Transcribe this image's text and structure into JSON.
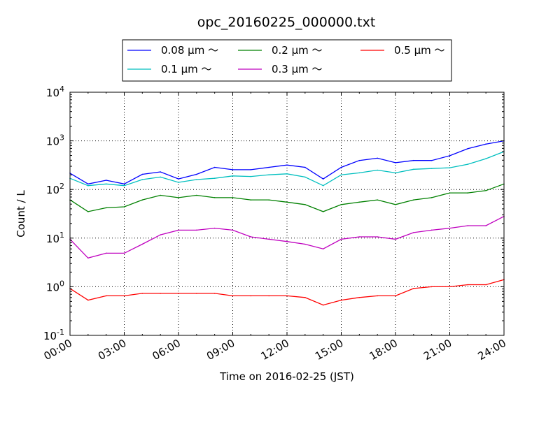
{
  "chart_data": {
    "type": "line",
    "title": "opc_20160225_000000.txt",
    "xlabel": "Time on 2016-02-25 (JST)",
    "ylabel": "Count / L",
    "yscale": "log",
    "ylim": [
      0.1,
      10000
    ],
    "xlim": [
      0,
      24
    ],
    "grid": true,
    "legend_placement": "top-center (above plot)",
    "x_tick_values": [
      0,
      3,
      6,
      9,
      12,
      15,
      18,
      21,
      24
    ],
    "x_tick_labels": [
      "00:00",
      "03:00",
      "06:00",
      "09:00",
      "12:00",
      "15:00",
      "18:00",
      "21:00",
      "24:00"
    ],
    "y_ticks": [
      {
        "value": 0.1,
        "base": "10",
        "exp": "-1"
      },
      {
        "value": 1,
        "base": "10",
        "exp": "0"
      },
      {
        "value": 10,
        "base": "10",
        "exp": "1"
      },
      {
        "value": 100,
        "base": "10",
        "exp": "2"
      },
      {
        "value": 1000,
        "base": "10",
        "exp": "3"
      },
      {
        "value": 10000,
        "base": "10",
        "exp": "4"
      }
    ],
    "x_hours": [
      0,
      1,
      2,
      3,
      4,
      5,
      6,
      7,
      8,
      9,
      10,
      11,
      12,
      13,
      14,
      15,
      16,
      17,
      18,
      19,
      20,
      21,
      22,
      23,
      24
    ],
    "series": [
      {
        "name": "0.08 μm ～",
        "color": "#0000ff",
        "values": [
          216,
          130,
          155,
          130,
          205,
          230,
          165,
          205,
          285,
          255,
          255,
          285,
          318,
          285,
          165,
          285,
          395,
          440,
          355,
          395,
          395,
          495,
          690,
          860,
          1000
        ]
      },
      {
        "name": "0.1 μm ～",
        "color": "#00bfbf",
        "values": [
          170,
          120,
          130,
          120,
          160,
          180,
          140,
          160,
          170,
          190,
          185,
          200,
          210,
          180,
          120,
          200,
          220,
          250,
          220,
          260,
          270,
          280,
          330,
          430,
          600
        ]
      },
      {
        "name": "0.2 μm ～",
        "color": "#008000",
        "values": [
          61,
          35,
          42,
          44,
          61,
          76,
          68,
          76,
          68,
          68,
          61,
          61,
          55,
          49,
          35,
          49,
          55,
          61,
          49,
          61,
          68,
          85,
          85,
          95,
          130
        ]
      },
      {
        "name": "0.3 μm ～",
        "color": "#bf00bf",
        "values": [
          9.5,
          3.9,
          4.9,
          4.9,
          7.5,
          11.7,
          14.6,
          14.6,
          16,
          14.6,
          10.6,
          9.5,
          8.5,
          7.5,
          6,
          9.5,
          10.6,
          10.6,
          9.5,
          13,
          14.6,
          16,
          18,
          18,
          28
        ]
      },
      {
        "name": "0.5 μm ～",
        "color": "#ff0000",
        "values": [
          0.92,
          0.53,
          0.65,
          0.65,
          0.73,
          0.73,
          0.73,
          0.73,
          0.73,
          0.65,
          0.65,
          0.65,
          0.65,
          0.6,
          0.42,
          0.53,
          0.6,
          0.65,
          0.65,
          0.92,
          1.0,
          1.0,
          1.1,
          1.1,
          1.4
        ]
      }
    ]
  }
}
